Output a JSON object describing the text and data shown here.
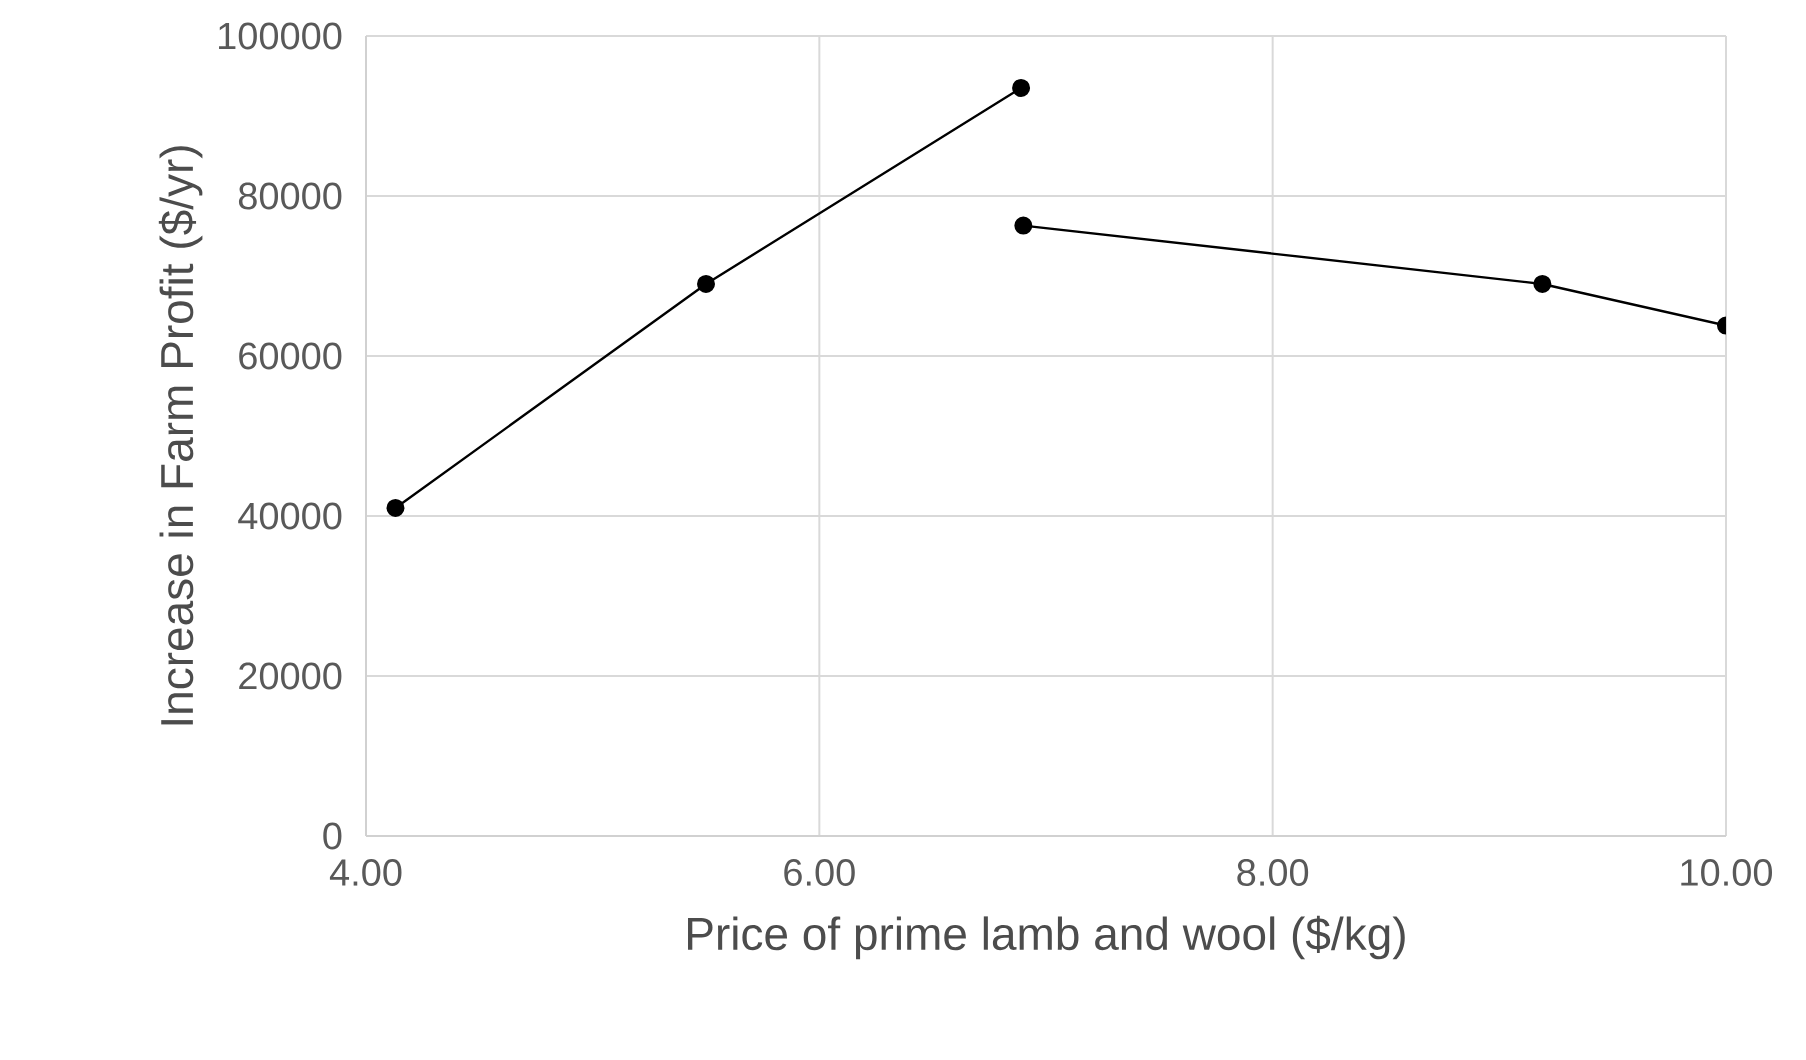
{
  "chart_data": {
    "type": "line",
    "xlabel": "Price of prime lamb and wool ($/kg)",
    "ylabel": "Increase in Farm Profit ($/yr)",
    "xlim": [
      4,
      10
    ],
    "xticks": [
      {
        "value": 4,
        "label": "4.00"
      },
      {
        "value": 6,
        "label": "6.00"
      },
      {
        "value": 8,
        "label": "8.00"
      },
      {
        "value": 10,
        "label": "10.00"
      }
    ],
    "ylim": [
      0,
      100000
    ],
    "yticks": [
      0,
      20000,
      40000,
      60000,
      80000,
      100000
    ],
    "grid": true,
    "marker": "circle",
    "line_style": "solid",
    "series": [
      {
        "color": "#000000",
        "x": [
          4.13,
          5.5,
          6.89
        ],
        "values": [
          41000,
          69000,
          93500
        ]
      },
      {
        "color": "#000000",
        "x": [
          6.9,
          9.19,
          10
        ],
        "values": [
          76300,
          69000,
          63800
        ]
      }
    ]
  }
}
